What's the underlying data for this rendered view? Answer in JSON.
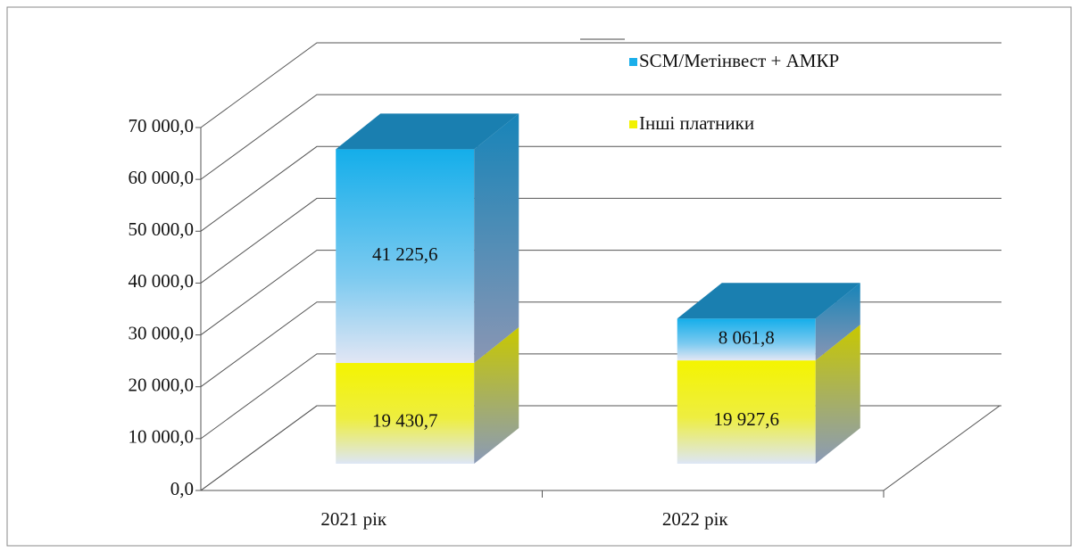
{
  "chart_data": {
    "type": "bar3d_stacked",
    "categories": [
      "2021 рік",
      "2022 рік"
    ],
    "series": [
      {
        "name": "Інші платники",
        "color": "#f2f200",
        "values": [
          19430.7,
          19927.6
        ],
        "value_labels": [
          "19 430,7",
          "19 927,6"
        ]
      },
      {
        "name": "SCM/Метінвест + АМКР",
        "color": "#1aaeea",
        "values": [
          41225.6,
          8061.8
        ],
        "value_labels": [
          "41 225,6",
          "8 061,8"
        ]
      }
    ],
    "ylim": [
      0,
      70000
    ],
    "yticks": [
      {
        "value": 0,
        "label": "0,0"
      },
      {
        "value": 10000,
        "label": "10 000,0"
      },
      {
        "value": 20000,
        "label": "20 000,0"
      },
      {
        "value": 30000,
        "label": "30 000,0"
      },
      {
        "value": 40000,
        "label": "40 000,0"
      },
      {
        "value": 50000,
        "label": "50 000,0"
      },
      {
        "value": 60000,
        "label": "60 000,0"
      },
      {
        "value": 70000,
        "label": "70 000,0"
      }
    ],
    "grid": true,
    "legend": "top-right"
  }
}
